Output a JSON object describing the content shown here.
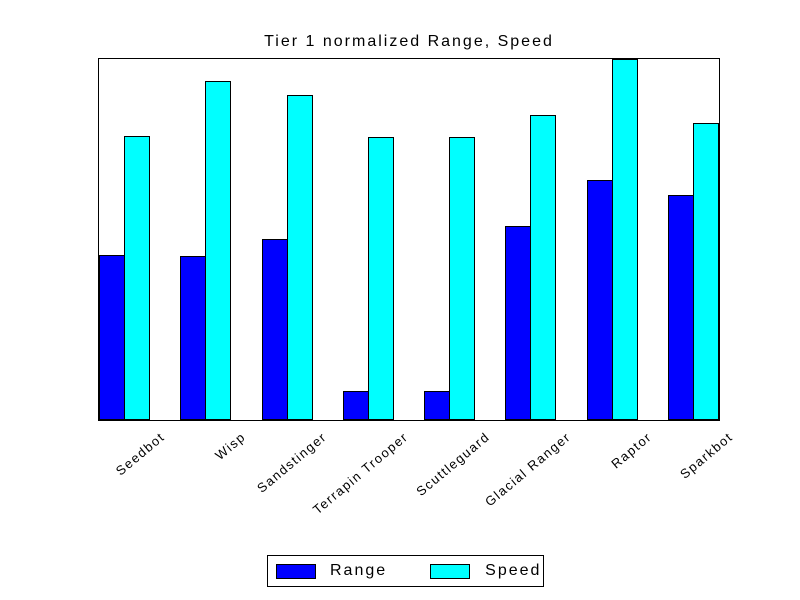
{
  "title": "Tier 1 normalized Range, Speed",
  "chart_data": {
    "type": "bar",
    "title": "Tier 1 normalized Range, Speed",
    "categories": [
      "Seedbot",
      "Wisp",
      "Sandstinger",
      "Terrapin Trooper",
      "Scuttleguard",
      "Glacial Ranger",
      "Raptor",
      "Sparkbot"
    ],
    "series": [
      {
        "name": "Range",
        "color": "#0000ff",
        "values": [
          0.457,
          0.454,
          0.501,
          0.081,
          0.081,
          0.537,
          0.665,
          0.623
        ]
      },
      {
        "name": "Speed",
        "color": "#00ffff",
        "values": [
          0.787,
          0.939,
          0.9,
          0.784,
          0.784,
          0.845,
          1.0,
          0.823
        ]
      }
    ],
    "xlabel": "",
    "ylabel": "",
    "ylim": [
      0,
      1
    ],
    "yticks_visible": false,
    "grid": false,
    "bar_outline_color": "#000000",
    "tick_label_rotation_deg": -40,
    "legend_position": "below-axes"
  },
  "legend": {
    "items": [
      {
        "label": "Range",
        "color": "#0000ff"
      },
      {
        "label": "Speed",
        "color": "#00ffff"
      }
    ]
  },
  "colors": {
    "background": "#ffffff",
    "axes_border": "#000000",
    "text": "#000000"
  }
}
